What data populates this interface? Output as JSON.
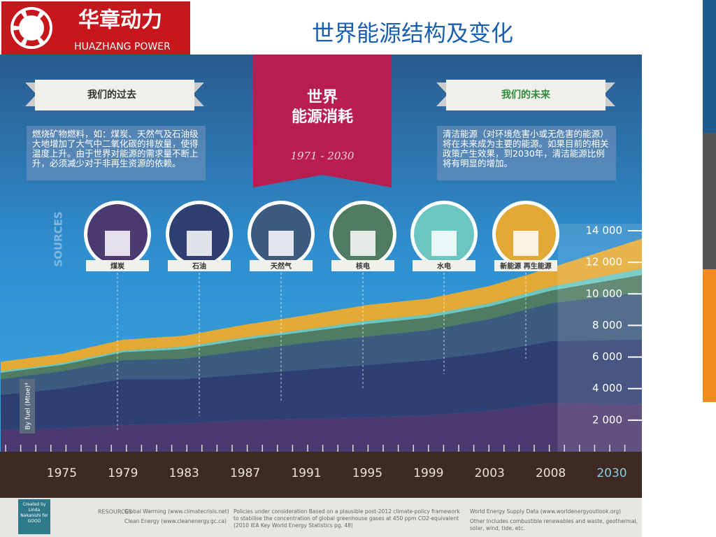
{
  "logo": {
    "name": "华章动力",
    "sub": "HUAZHANG POWER"
  },
  "title": "世界能源结构及变化",
  "banner": {
    "line1": "世界",
    "line2": "能源消耗",
    "period": "1971 - 2030"
  },
  "past": {
    "heading": "我们的过去",
    "text": "燃烧矿物燃料，如：煤炭、天然气及石油级大地增加了大气中二氧化碳的排放量，使得温度上升。由于世界对能源的需求量不断上升，必须减少对于非再生资源的依赖。"
  },
  "future": {
    "heading": "我们的未来",
    "text": "清洁能源（对环境危害小或无危害的能源）将在未来成为主要的能源。如果目前的相关政策产生效果，到2030年，清洁能源比例将有明显的增加。"
  },
  "sources_label": "SOURCES",
  "footer": {
    "credit": "Created by Linda Nakanishi for GOOD",
    "resources": "RESOURCES",
    "r1": "Global Warming (www.climatecrisis.net)",
    "r2": "Clean Energy (www.cleanenergy.gc.ca)",
    "r3": "Policies under consideration Based on a plausible post-2012 climate-policy framework to stabilise the concentration of global greenhouse gases at 450 ppm CO2-equivalent (2010 IEA Key World Energy Statistics pg. 48)",
    "r4": "World Energy Supply Data (www.worldenergyoutlook.org)",
    "r5": "Other Includes combustible renewables and waste, geothermal, solar, wind, tide, etc."
  },
  "chart_data": {
    "type": "stacked_area",
    "y_label": "By fuel (Mtoe)⁴",
    "categories": [
      null,
      "1975",
      "1979",
      "1983",
      "1987",
      "1991",
      "1995",
      "1999",
      "2003",
      "2008",
      "2030"
    ],
    "series": [
      {
        "name": "煤炭",
        "color": "#4b3a70",
        "values": [
          1400,
          1500,
          1700,
          1800,
          2000,
          2100,
          2200,
          2300,
          2600,
          3100,
          3000
        ]
      },
      {
        "name": "石油",
        "color": "#2e3f72",
        "values": [
          2200,
          2500,
          2900,
          2800,
          2900,
          3100,
          3300,
          3500,
          3700,
          3900,
          4100
        ]
      },
      {
        "name": "天然气",
        "color": "#3d5b7e",
        "values": [
          1000,
          1100,
          1200,
          1300,
          1500,
          1700,
          1800,
          1900,
          2100,
          2400,
          3000
        ]
      },
      {
        "name": "核电",
        "color": "#4f7c62",
        "values": [
          400,
          400,
          500,
          600,
          700,
          700,
          800,
          800,
          800,
          800,
          1100
        ]
      },
      {
        "name": "水电",
        "color": "#6cc6c0",
        "values": [
          100,
          100,
          100,
          150,
          150,
          150,
          200,
          200,
          200,
          250,
          400
        ]
      },
      {
        "name": "新能源 再生能源",
        "color": "#e3a935",
        "values": [
          600,
          600,
          700,
          700,
          800,
          900,
          1000,
          1000,
          1100,
          1200,
          1900
        ]
      }
    ],
    "ylim": [
      0,
      14000
    ],
    "yticks": [
      {
        "value": 2000,
        "label": "2 000"
      },
      {
        "value": 4000,
        "label": "4 000"
      },
      {
        "value": 6000,
        "label": "6 000"
      },
      {
        "value": 8000,
        "label": "8 000"
      },
      {
        "value": 10000,
        "label": "10 000"
      },
      {
        "value": 12000,
        "label": "12 000"
      },
      {
        "value": 14000,
        "label": "14 000"
      }
    ]
  }
}
